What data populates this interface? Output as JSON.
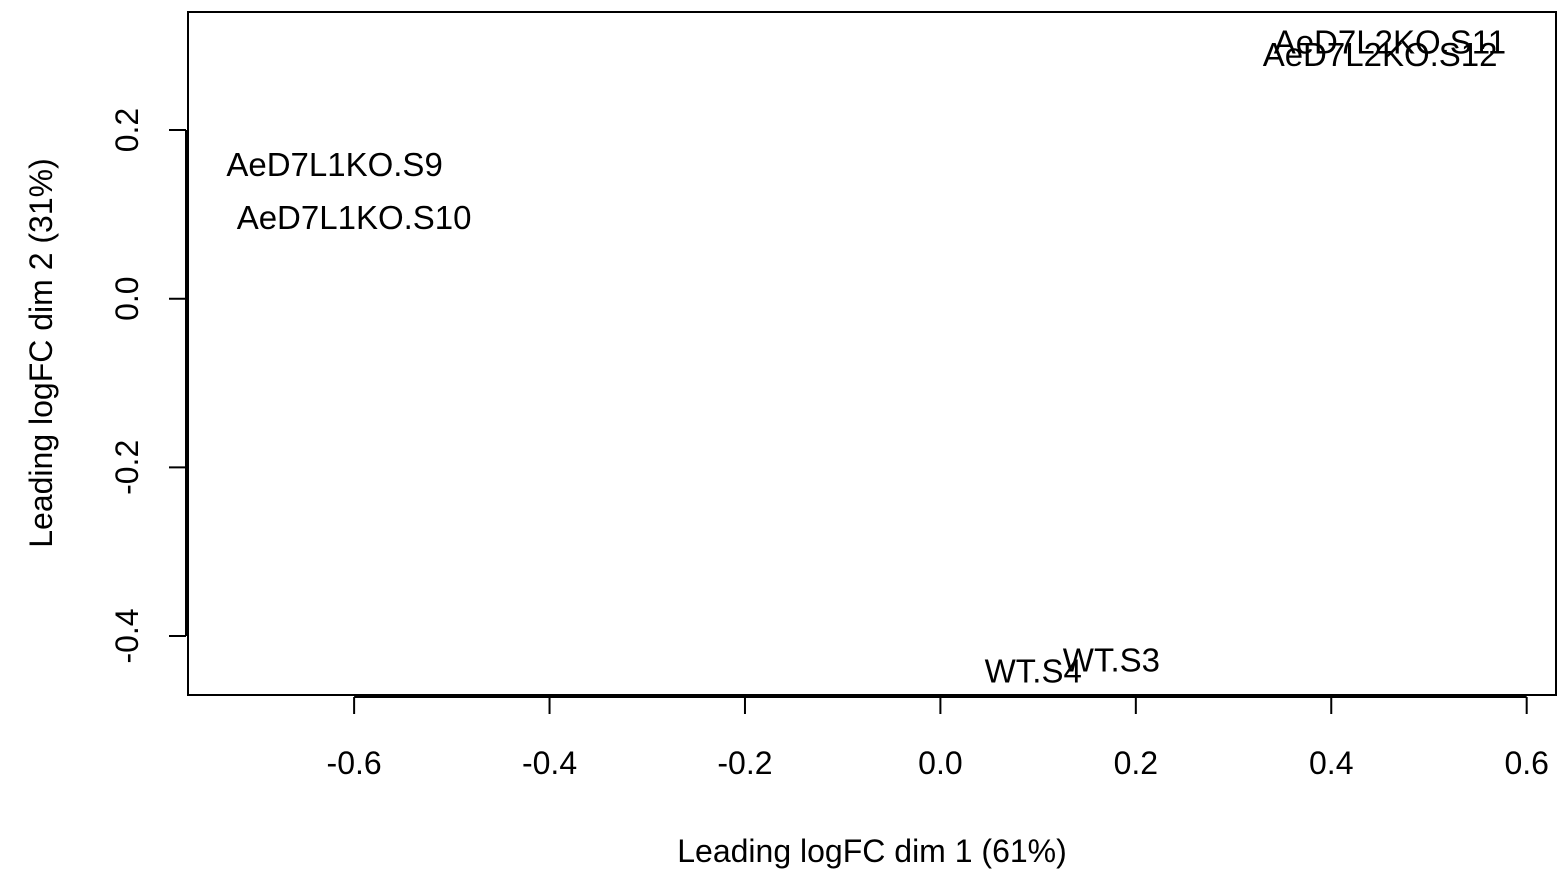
{
  "chart_data": {
    "type": "scatter",
    "title": "",
    "xlabel": "Leading logFC dim 1 (61%)",
    "ylabel": "Leading logFC dim 2 (31%)",
    "xlim": [
      -0.77,
      0.63
    ],
    "ylim": [
      -0.47,
      0.34
    ],
    "x_ticks": [
      -0.6,
      -0.4,
      -0.2,
      0.0,
      0.2,
      0.4,
      0.6
    ],
    "x_tick_labels": [
      "-0.6",
      "-0.4",
      "-0.2",
      "0.0",
      "0.2",
      "0.4",
      "0.6"
    ],
    "y_ticks": [
      -0.4,
      -0.2,
      0.0,
      0.2
    ],
    "y_tick_labels": [
      "-0.4",
      "-0.2",
      "0.0",
      "0.2"
    ],
    "grid": false,
    "legend": "none",
    "points": [
      {
        "label": "AeD7L1KO.S9",
        "x": -0.62,
        "y": 0.16
      },
      {
        "label": "AeD7L1KO.S10",
        "x": -0.6,
        "y": 0.097
      },
      {
        "label": "AeD7L2KO.S11",
        "x": 0.46,
        "y": 0.305
      },
      {
        "label": "AeD7L2KO.S12",
        "x": 0.45,
        "y": 0.29
      },
      {
        "label": "WT.S3",
        "x": 0.175,
        "y": -0.428
      },
      {
        "label": "WT.S4",
        "x": 0.095,
        "y": -0.441
      }
    ]
  }
}
